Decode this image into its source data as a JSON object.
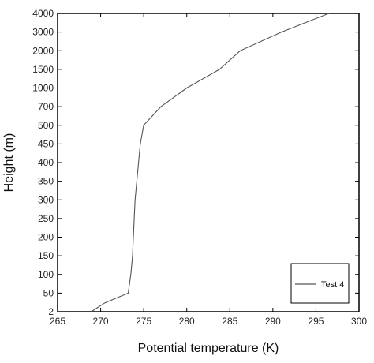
{
  "chart_data": {
    "type": "line",
    "title": "",
    "xlabel": "Potential temperature (K)",
    "ylabel": "Height (m)",
    "xlim": [
      265,
      300
    ],
    "x_ticks": [
      "265",
      "270",
      "275",
      "280",
      "285",
      "290",
      "295",
      "300"
    ],
    "y_ticks": [
      "2",
      "50",
      "100",
      "150",
      "200",
      "250",
      "300",
      "350",
      "400",
      "450",
      "500",
      "700",
      "1000",
      "1500",
      "2000",
      "3000",
      "4000"
    ],
    "y_scale": "categorical-height",
    "grid": false,
    "legend": "bottom-right",
    "series": [
      {
        "name": "Test 4",
        "color": "#555555",
        "points": [
          {
            "x": 268.9,
            "y": "2"
          },
          {
            "x": 270.5,
            "y": "25"
          },
          {
            "x": 273.2,
            "y": "50"
          },
          {
            "x": 273.5,
            "y": "100"
          },
          {
            "x": 273.7,
            "y": "150"
          },
          {
            "x": 273.8,
            "y": "200"
          },
          {
            "x": 273.9,
            "y": "250"
          },
          {
            "x": 274.0,
            "y": "300"
          },
          {
            "x": 274.2,
            "y": "350"
          },
          {
            "x": 274.4,
            "y": "400"
          },
          {
            "x": 274.6,
            "y": "450"
          },
          {
            "x": 275.0,
            "y": "500"
          },
          {
            "x": 277.0,
            "y": "700"
          },
          {
            "x": 280.0,
            "y": "1000"
          },
          {
            "x": 283.8,
            "y": "1500"
          },
          {
            "x": 286.2,
            "y": "2000"
          },
          {
            "x": 291.0,
            "y": "3000"
          },
          {
            "x": 296.5,
            "y": "4000"
          }
        ]
      }
    ]
  },
  "legend": {
    "series_label": "Test 4"
  }
}
